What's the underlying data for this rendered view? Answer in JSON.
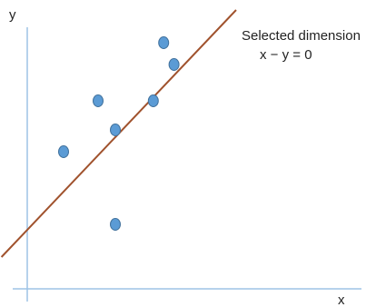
{
  "chart_data": {
    "type": "scatter",
    "title": "",
    "xlabel": "x",
    "ylabel": "y",
    "grid": false,
    "points": [
      {
        "x": 1.0,
        "y": 2.1
      },
      {
        "x": 2.0,
        "y": 3.5
      },
      {
        "x": 2.5,
        "y": 2.7
      },
      {
        "x": 2.5,
        "y": 0.1
      },
      {
        "x": 3.6,
        "y": 3.5
      },
      {
        "x": 3.9,
        "y": 5.1
      },
      {
        "x": 4.2,
        "y": 4.5
      }
    ],
    "line": {
      "label": "Selected dimension",
      "equation": "x − y = 0",
      "from": [
        -0.8,
        -0.8
      ],
      "to": [
        6.0,
        6.0
      ]
    }
  },
  "colors": {
    "axis": "#9dc3e6",
    "point_fill": "#5b9bd5",
    "point_stroke": "#41719c",
    "line": "#a0522d",
    "text": "#222222"
  }
}
